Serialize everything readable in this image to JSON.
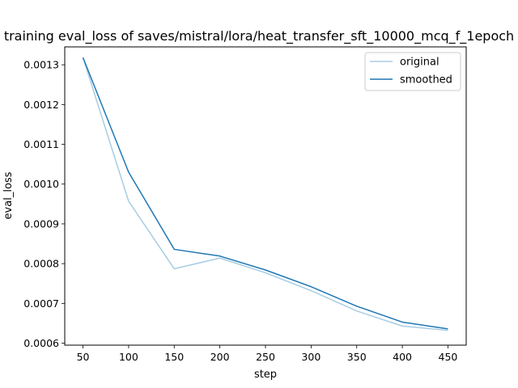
{
  "chart_data": {
    "type": "line",
    "title": "training eval_loss of saves/mistral/lora/heat_transfer_sft_10000_mcq_f_1epoch",
    "xlabel": "step",
    "ylabel": "eval_loss",
    "xlim": [
      30,
      470
    ],
    "ylim": [
      0.000595,
      0.001345
    ],
    "x_ticks": [
      50,
      100,
      150,
      200,
      250,
      300,
      350,
      400,
      450
    ],
    "x_tick_labels": [
      "50",
      "100",
      "150",
      "200",
      "250",
      "300",
      "350",
      "400",
      "450"
    ],
    "y_ticks": [
      0.0006,
      0.0007,
      0.0008,
      0.0009,
      0.001,
      0.0011,
      0.0012,
      0.0013
    ],
    "y_tick_labels": [
      "0.0006",
      "0.0007",
      "0.0008",
      "0.0009",
      "0.0010",
      "0.0011",
      "0.0012",
      "0.0013"
    ],
    "grid": false,
    "legend_position": "top-right",
    "x": [
      50,
      100,
      150,
      200,
      250,
      300,
      350,
      400,
      450
    ],
    "series": [
      {
        "name": "original",
        "color": "#a6cde3",
        "values": [
          0.001318,
          0.000957,
          0.000787,
          0.000814,
          0.000777,
          0.000732,
          0.000681,
          0.000643,
          0.000632
        ]
      },
      {
        "name": "smoothed",
        "color": "#1f77b4",
        "values": [
          0.001318,
          0.00103,
          0.000836,
          0.000819,
          0.000784,
          0.000742,
          0.000693,
          0.000653,
          0.000636
        ]
      }
    ]
  }
}
